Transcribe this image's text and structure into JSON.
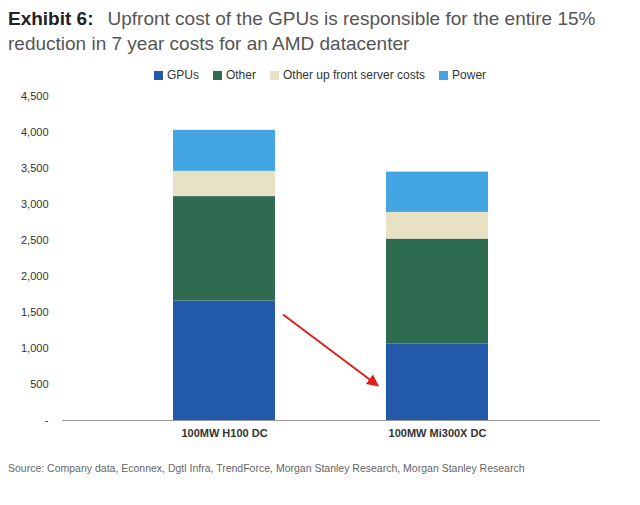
{
  "chart_data": {
    "type": "bar",
    "title": "Upfront cost of the GPUs is responsible for the entire 15% reduction in 7 year costs for an AMD datacenter",
    "exhibit": "Exhibit 6:",
    "source": "Source: Company data, Econnex, Dgtl Infra, TrendForce, Morgan Stanley Research, Morgan Stanley Research",
    "categories": [
      "100MW H100 DC",
      "100MW Mi300X DC"
    ],
    "series": [
      {
        "name": "GPUs",
        "color": "#2259a8",
        "values": [
          1660,
          1060
        ]
      },
      {
        "name": "Other",
        "color": "#2e6b50",
        "values": [
          1450,
          1460
        ]
      },
      {
        "name": "Other up front server costs",
        "color": "#e8e1c4",
        "values": [
          350,
          370
        ]
      },
      {
        "name": "Power",
        "color": "#43a6e2",
        "values": [
          570,
          560
        ]
      }
    ],
    "stacked": true,
    "legend": "top",
    "grid": false,
    "ylim": [
      0,
      4500
    ],
    "yticks": [
      {
        "value": 0,
        "label": "-"
      },
      500,
      {
        "value": 1000,
        "label": "1,000"
      },
      {
        "value": 1500,
        "label": "1,500"
      },
      {
        "value": 2000,
        "label": "2,000"
      },
      {
        "value": 2500,
        "label": "2,500"
      },
      {
        "value": 3000,
        "label": "3,000"
      },
      {
        "value": 3500,
        "label": "3,500"
      },
      {
        "value": 4000,
        "label": "4,000"
      },
      {
        "value": 4500,
        "label": "4,500"
      }
    ]
  }
}
